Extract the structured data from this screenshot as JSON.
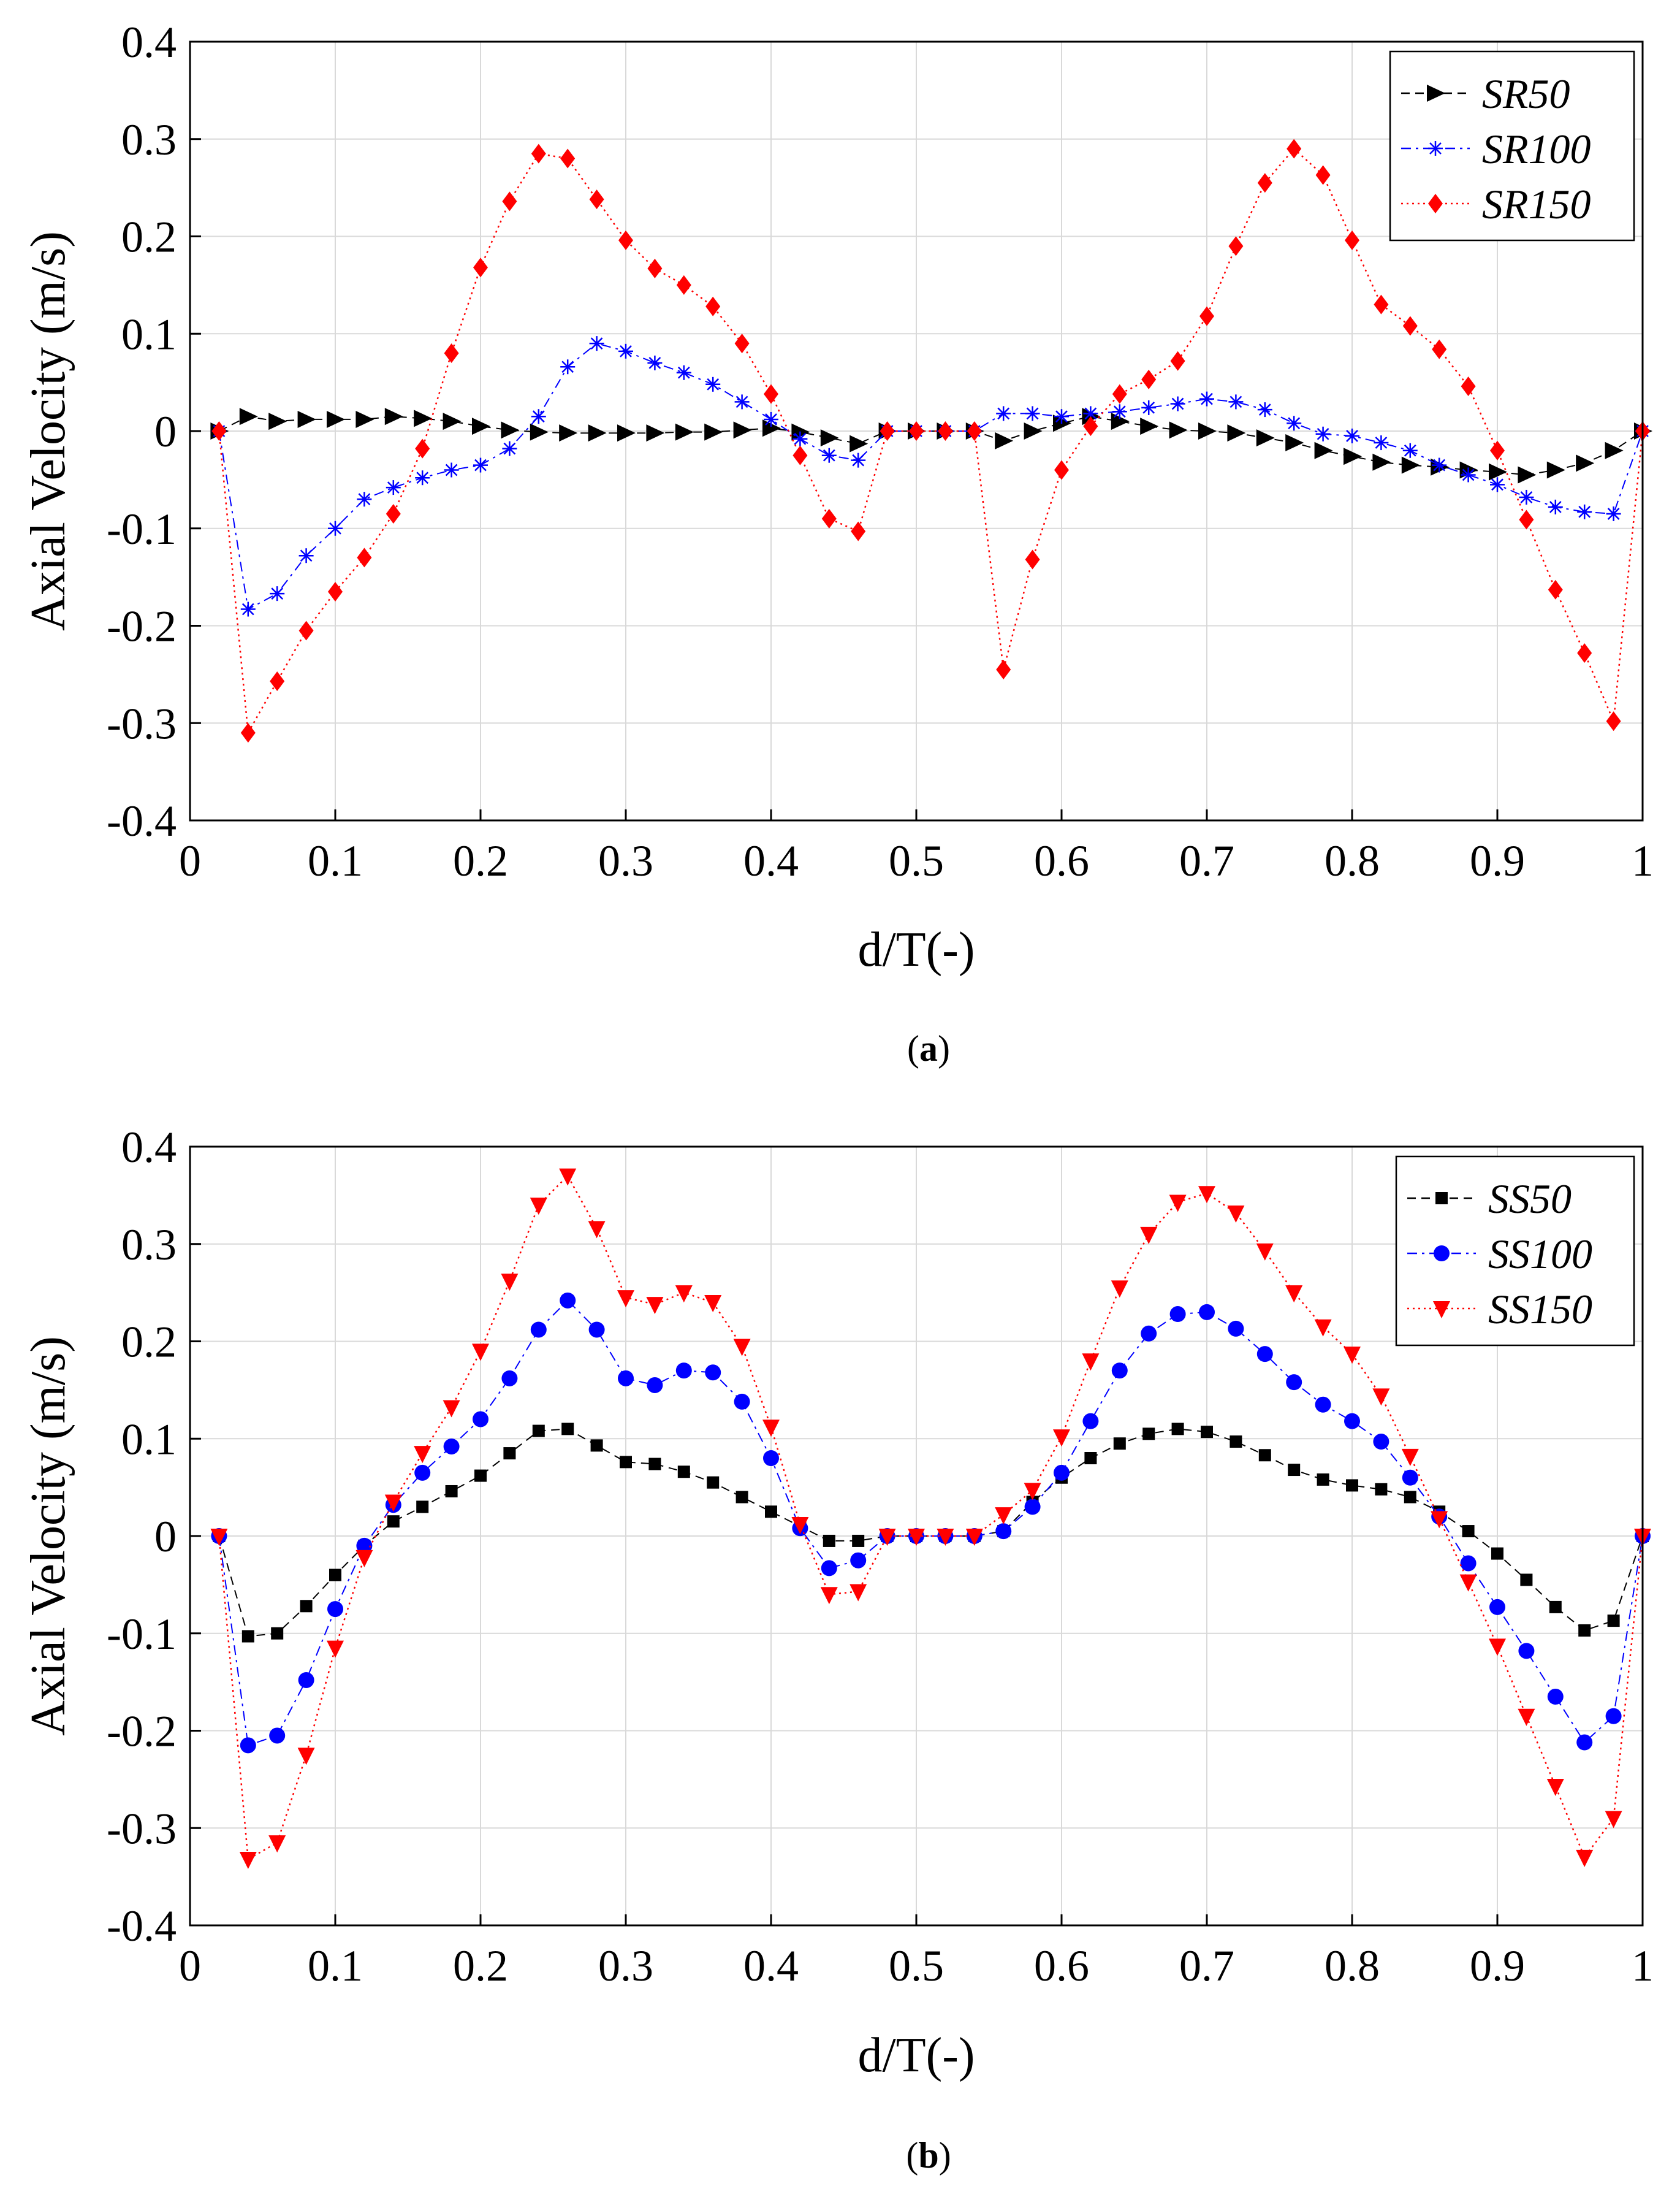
{
  "chart_data": [
    {
      "type": "line",
      "panel_label": "a",
      "xlabel": "d/T(-)",
      "ylabel": "Axial Velocity (m/s)",
      "xlim": [
        0,
        1
      ],
      "ylim": [
        -0.4,
        0.4
      ],
      "xticks": [
        "0",
        "0.1",
        "0.2",
        "0.3",
        "0.4",
        "0.5",
        "0.6",
        "0.7",
        "0.8",
        "0.9",
        "1"
      ],
      "yticks": [
        "-0.4",
        "-0.3",
        "-0.2",
        "-0.1",
        "0",
        "0.1",
        "0.2",
        "0.3",
        "0.4"
      ],
      "grid": true,
      "legend_position": "top-right",
      "x": [
        0.02,
        0.04,
        0.06,
        0.08,
        0.1,
        0.12,
        0.14,
        0.16,
        0.18,
        0.2,
        0.22,
        0.24,
        0.26,
        0.28,
        0.3,
        0.32,
        0.34,
        0.36,
        0.38,
        0.4,
        0.42,
        0.44,
        0.46,
        0.48,
        0.5,
        0.52,
        0.54,
        0.56,
        0.58,
        0.6,
        0.62,
        0.64,
        0.66,
        0.68,
        0.7,
        0.72,
        0.74,
        0.76,
        0.78,
        0.8,
        0.82,
        0.84,
        0.86,
        0.88,
        0.9,
        0.92,
        0.94,
        0.96,
        0.98,
        1.0
      ],
      "series": [
        {
          "name": "SR50",
          "color": "#000000",
          "marker": "triangle-right",
          "dash": "dash",
          "values": [
            0,
            0.015,
            0.01,
            0.012,
            0.012,
            0.012,
            0.015,
            0.013,
            0.01,
            0.005,
            0.001,
            -0.001,
            -0.002,
            -0.002,
            -0.002,
            -0.002,
            -0.001,
            -0.001,
            0.001,
            0.003,
            -0.001,
            -0.007,
            -0.013,
            0,
            0,
            0,
            0,
            -0.01,
            0.0,
            0.008,
            0.015,
            0.01,
            0.005,
            0.001,
            0.0,
            -0.002,
            -0.007,
            -0.012,
            -0.02,
            -0.026,
            -0.032,
            -0.035,
            -0.037,
            -0.04,
            -0.042,
            -0.045,
            -0.04,
            -0.033,
            -0.02,
            0
          ]
        },
        {
          "name": "SR100",
          "color": "#0000ff",
          "marker": "asterisk",
          "dash": "dashdot",
          "values": [
            0,
            -0.183,
            -0.167,
            -0.128,
            -0.1,
            -0.07,
            -0.058,
            -0.048,
            -0.04,
            -0.035,
            -0.018,
            0.015,
            0.066,
            0.09,
            0.082,
            0.07,
            0.06,
            0.048,
            0.03,
            0.012,
            -0.008,
            -0.025,
            -0.03,
            0,
            0,
            0,
            0,
            0.018,
            0.018,
            0.015,
            0.018,
            0.02,
            0.024,
            0.028,
            0.033,
            0.03,
            0.022,
            0.008,
            -0.003,
            -0.005,
            -0.012,
            -0.02,
            -0.035,
            -0.045,
            -0.055,
            -0.068,
            -0.078,
            -0.083,
            -0.085,
            0
          ]
        },
        {
          "name": "SR150",
          "color": "#ff0000",
          "marker": "diamond",
          "dash": "dot",
          "values": [
            0,
            -0.31,
            -0.257,
            -0.205,
            -0.165,
            -0.13,
            -0.085,
            -0.018,
            0.08,
            0.168,
            0.236,
            0.285,
            0.28,
            0.238,
            0.196,
            0.167,
            0.15,
            0.128,
            0.09,
            0.038,
            -0.025,
            -0.09,
            -0.103,
            0,
            0,
            0,
            0,
            -0.245,
            -0.132,
            -0.04,
            0.005,
            0.038,
            0.053,
            0.072,
            0.118,
            0.19,
            0.255,
            0.29,
            0.263,
            0.196,
            0.13,
            0.108,
            0.084,
            0.046,
            -0.02,
            -0.091,
            -0.163,
            -0.228,
            -0.298,
            0
          ]
        }
      ]
    },
    {
      "type": "line",
      "panel_label": "b",
      "xlabel": "d/T(-)",
      "ylabel": "Axial Velocity (m/s)",
      "xlim": [
        0,
        1
      ],
      "ylim": [
        -0.4,
        0.4
      ],
      "xticks": [
        "0",
        "0.1",
        "0.2",
        "0.3",
        "0.4",
        "0.5",
        "0.6",
        "0.7",
        "0.8",
        "0.9",
        "1"
      ],
      "yticks": [
        "-0.4",
        "-0.3",
        "-0.2",
        "-0.1",
        "0",
        "0.1",
        "0.2",
        "0.3",
        "0.4"
      ],
      "grid": true,
      "legend_position": "top-right",
      "x": [
        0.02,
        0.04,
        0.06,
        0.08,
        0.1,
        0.12,
        0.14,
        0.16,
        0.18,
        0.2,
        0.22,
        0.24,
        0.26,
        0.28,
        0.3,
        0.32,
        0.34,
        0.36,
        0.38,
        0.4,
        0.42,
        0.44,
        0.46,
        0.48,
        0.5,
        0.52,
        0.54,
        0.56,
        0.58,
        0.6,
        0.62,
        0.64,
        0.66,
        0.68,
        0.7,
        0.72,
        0.74,
        0.76,
        0.78,
        0.8,
        0.82,
        0.84,
        0.86,
        0.88,
        0.9,
        0.92,
        0.94,
        0.96,
        0.98,
        1.0
      ],
      "series": [
        {
          "name": "SS50",
          "color": "#000000",
          "marker": "square",
          "dash": "dash",
          "values": [
            0,
            -0.103,
            -0.1,
            -0.072,
            -0.04,
            -0.01,
            0.015,
            0.03,
            0.046,
            0.062,
            0.085,
            0.108,
            0.11,
            0.093,
            0.076,
            0.074,
            0.066,
            0.055,
            0.04,
            0.025,
            0.01,
            -0.005,
            -0.005,
            0,
            0,
            0,
            0,
            0.005,
            0.035,
            0.06,
            0.08,
            0.095,
            0.105,
            0.11,
            0.107,
            0.097,
            0.083,
            0.068,
            0.058,
            0.052,
            0.048,
            0.04,
            0.025,
            0.005,
            -0.018,
            -0.045,
            -0.073,
            -0.097,
            -0.087,
            0
          ]
        },
        {
          "name": "SS100",
          "color": "#0000ff",
          "marker": "circle",
          "dash": "dashdot",
          "values": [
            0,
            -0.215,
            -0.205,
            -0.148,
            -0.075,
            -0.01,
            0.032,
            0.065,
            0.092,
            0.12,
            0.162,
            0.212,
            0.242,
            0.212,
            0.162,
            0.155,
            0.17,
            0.168,
            0.138,
            0.08,
            0.008,
            -0.033,
            -0.025,
            0,
            0,
            0,
            0,
            0.005,
            0.03,
            0.065,
            0.118,
            0.17,
            0.208,
            0.228,
            0.23,
            0.213,
            0.187,
            0.158,
            0.135,
            0.118,
            0.097,
            0.06,
            0.02,
            -0.028,
            -0.073,
            -0.118,
            -0.165,
            -0.212,
            -0.185,
            0
          ]
        },
        {
          "name": "SS150",
          "color": "#ff0000",
          "marker": "triangle-down",
          "dash": "dot",
          "values": [
            0,
            -0.332,
            -0.315,
            -0.225,
            -0.115,
            -0.022,
            0.035,
            0.085,
            0.132,
            0.19,
            0.262,
            0.34,
            0.37,
            0.316,
            0.245,
            0.238,
            0.25,
            0.24,
            0.195,
            0.112,
            0.012,
            -0.06,
            -0.057,
            0,
            0,
            0,
            0,
            0.022,
            0.047,
            0.102,
            0.18,
            0.255,
            0.31,
            0.343,
            0.352,
            0.332,
            0.293,
            0.25,
            0.215,
            0.187,
            0.144,
            0.082,
            0.018,
            -0.047,
            -0.113,
            -0.185,
            -0.257,
            -0.33,
            -0.29,
            0
          ]
        }
      ]
    }
  ]
}
